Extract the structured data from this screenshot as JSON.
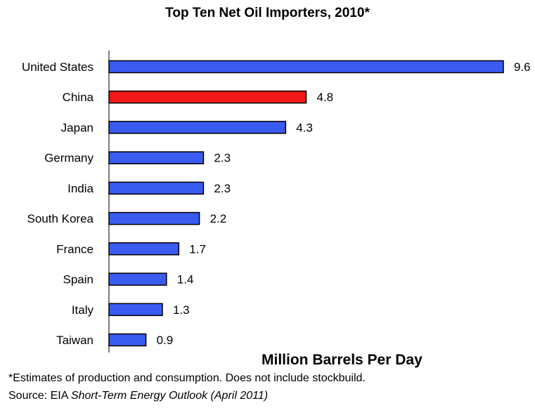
{
  "title": "Top Ten Net Oil Importers, 2010*",
  "axis_title": "Million Barrels Per Day",
  "footnote": "*Estimates of production and consumption. Does not include stockbuild.",
  "source": {
    "prefix": "Source: EIA ",
    "publication": "Short-Term Energy Outlook (April 2011)"
  },
  "colors": {
    "bar": "#3A5BF0",
    "highlight": "#F01818",
    "bar_outline": "#000000"
  },
  "chart_data": {
    "type": "bar",
    "orientation": "horizontal",
    "title": "Top Ten Net Oil Importers, 2010*",
    "xlabel": "Million Barrels Per Day",
    "ylabel": "",
    "categories": [
      "United States",
      "China",
      "Japan",
      "Germany",
      "India",
      "South Korea",
      "France",
      "Spain",
      "Italy",
      "Taiwan"
    ],
    "values": [
      9.6,
      4.8,
      4.3,
      2.3,
      2.3,
      2.2,
      1.7,
      1.4,
      1.3,
      0.9
    ],
    "value_labels": [
      "9.6",
      "4.8",
      "4.3",
      "2.3",
      "2.3",
      "2.2",
      "1.7",
      "1.4",
      "1.3",
      "0.9"
    ],
    "highlight_category": "China",
    "xlim": [
      0,
      9.6
    ],
    "grid": false,
    "legend": "none"
  }
}
